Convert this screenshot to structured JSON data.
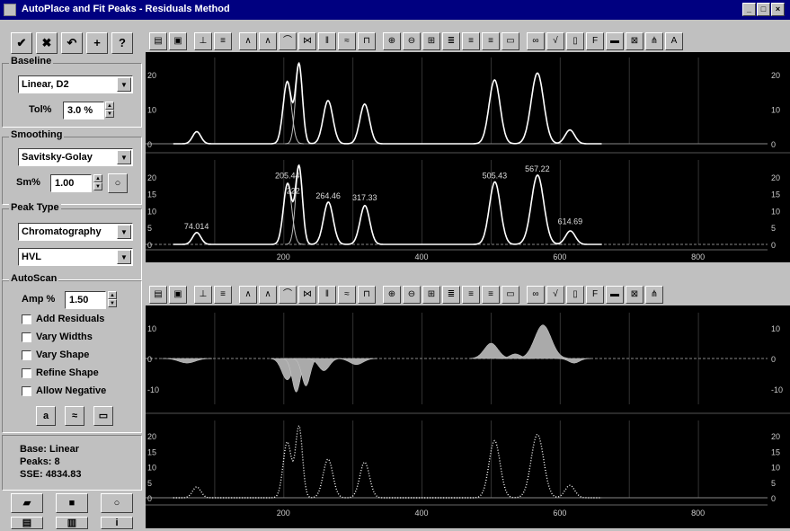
{
  "window": {
    "title": "AutoPlace and Fit Peaks - Residuals Method"
  },
  "left_toolbar": [
    {
      "name": "ok-button",
      "glyph": "✔"
    },
    {
      "name": "cancel-button",
      "glyph": "✖"
    },
    {
      "name": "undo-button",
      "glyph": "↶"
    },
    {
      "name": "add-button",
      "glyph": "+"
    },
    {
      "name": "help-button",
      "glyph": "?"
    }
  ],
  "baseline": {
    "label": "Baseline",
    "type": "Linear, D2",
    "tol_label": "Tol%",
    "tol_value": "3.0 %"
  },
  "smoothing": {
    "label": "Smoothing",
    "method": "Savitsky-Golay",
    "sm_label": "Sm%",
    "sm_value": "1.00"
  },
  "peak_type": {
    "label": "Peak Type",
    "category": "Chromatography",
    "function": "HVL"
  },
  "autoscan": {
    "label": "AutoScan",
    "amp_label": "Amp %",
    "amp_value": "1.50",
    "checkboxes": [
      {
        "label": "Add Residuals",
        "checked": false
      },
      {
        "label": "Vary Widths",
        "checked": false
      },
      {
        "label": "Vary Shape",
        "checked": false
      },
      {
        "label": "Refine Shape",
        "checked": false
      },
      {
        "label": "Allow Negative",
        "checked": false
      }
    ],
    "buttons": [
      "a",
      "",
      ""
    ]
  },
  "status": {
    "base": "Base:  Linear",
    "peaks": "Peaks:  8",
    "sse": "SSE:  4834.83"
  },
  "top_plot": {
    "upper": {
      "y_ticks": [
        "20",
        "10",
        "0"
      ],
      "right_ticks": [
        "20",
        "10",
        "0"
      ]
    },
    "lower": {
      "y_ticks": [
        "20",
        "15",
        "10",
        "5",
        "0"
      ],
      "right_ticks": [
        "20",
        "15",
        "10",
        "5",
        "0"
      ],
      "peak_labels": [
        {
          "x": 74.014,
          "y": 4.5,
          "text": "74.014"
        },
        {
          "x": 205.44,
          "y": 19.5,
          "text": "205.44"
        },
        {
          "x": 222.0,
          "y": 15,
          "text": "222"
        },
        {
          "x": 264.46,
          "y": 13.5,
          "text": "264.46"
        },
        {
          "x": 317.33,
          "y": 13,
          "text": "317.33"
        },
        {
          "x": 505.43,
          "y": 19.5,
          "text": "505.43"
        },
        {
          "x": 567.22,
          "y": 21.5,
          "text": "567.22"
        },
        {
          "x": 614.69,
          "y": 6,
          "text": "614.69"
        }
      ]
    },
    "x_ticks": [
      "200",
      "400",
      "600",
      "800"
    ]
  },
  "bottom_plot": {
    "residual": {
      "y_ticks": [
        "10",
        "0",
        "-10"
      ],
      "right_ticks": [
        "10",
        "0",
        "-10"
      ]
    },
    "data": {
      "y_ticks": [
        "20",
        "15",
        "10",
        "5",
        "0"
      ],
      "right_ticks": [
        "20",
        "15",
        "10",
        "5",
        "0"
      ]
    },
    "x_ticks": [
      "200",
      "400",
      "600",
      "800"
    ]
  },
  "chart_data": [
    {
      "type": "line",
      "title": "",
      "xlabel": "",
      "ylabel": "",
      "xlim": [
        0,
        900
      ],
      "ylim": [
        0,
        25
      ],
      "series": [
        {
          "peaks": [
            {
              "x": 74,
              "h": 3.5
            },
            {
              "x": 205,
              "h": 18
            },
            {
              "x": 222,
              "h": 23
            },
            {
              "x": 264,
              "h": 12.5
            },
            {
              "x": 317,
              "h": 11.5
            },
            {
              "x": 505,
              "h": 18.5
            },
            {
              "x": 567,
              "h": 20.5
            },
            {
              "x": 614,
              "h": 4
            }
          ]
        }
      ]
    },
    {
      "type": "line",
      "title": "",
      "xlabel": "",
      "ylabel": "",
      "xlim": [
        0,
        900
      ],
      "ylim": [
        0,
        25
      ],
      "series": [
        {
          "peaks": [
            {
              "x": 74.014,
              "h": 3.5
            },
            {
              "x": 205.44,
              "h": 18
            },
            {
              "x": 222,
              "h": 23
            },
            {
              "x": 264.46,
              "h": 12.5
            },
            {
              "x": 317.33,
              "h": 11.5
            },
            {
              "x": 505.43,
              "h": 18.5
            },
            {
              "x": 567.22,
              "h": 20.5
            },
            {
              "x": 614.69,
              "h": 4
            }
          ]
        }
      ]
    },
    {
      "type": "area",
      "title": "",
      "xlabel": "",
      "ylabel": "",
      "xlim": [
        0,
        900
      ],
      "ylim": [
        -15,
        15
      ],
      "series": [
        {
          "residual_bumps": [
            {
              "x": 60,
              "h": -1.5,
              "w": 12
            },
            {
              "x": 205,
              "h": -7,
              "w": 8
            },
            {
              "x": 218,
              "h": -11,
              "w": 6
            },
            {
              "x": 232,
              "h": -9,
              "w": 6
            },
            {
              "x": 258,
              "h": -4,
              "w": 8
            },
            {
              "x": 305,
              "h": -2,
              "w": 10
            },
            {
              "x": 500,
              "h": 5,
              "w": 10
            },
            {
              "x": 535,
              "h": 1.5,
              "w": 8
            },
            {
              "x": 575,
              "h": 11,
              "w": 12
            },
            {
              "x": 620,
              "h": -1.5,
              "w": 8
            }
          ]
        }
      ]
    },
    {
      "type": "line",
      "title": "",
      "xlabel": "",
      "ylabel": "",
      "xlim": [
        0,
        900
      ],
      "ylim": [
        0,
        25
      ],
      "series": [
        {
          "peaks": [
            {
              "x": 74,
              "h": 3.5
            },
            {
              "x": 205,
              "h": 18
            },
            {
              "x": 222,
              "h": 23
            },
            {
              "x": 264,
              "h": 12.5
            },
            {
              "x": 317,
              "h": 11.5
            },
            {
              "x": 505,
              "h": 18.5
            },
            {
              "x": 567,
              "h": 20.5
            },
            {
              "x": 614,
              "h": 4
            }
          ]
        }
      ]
    }
  ]
}
